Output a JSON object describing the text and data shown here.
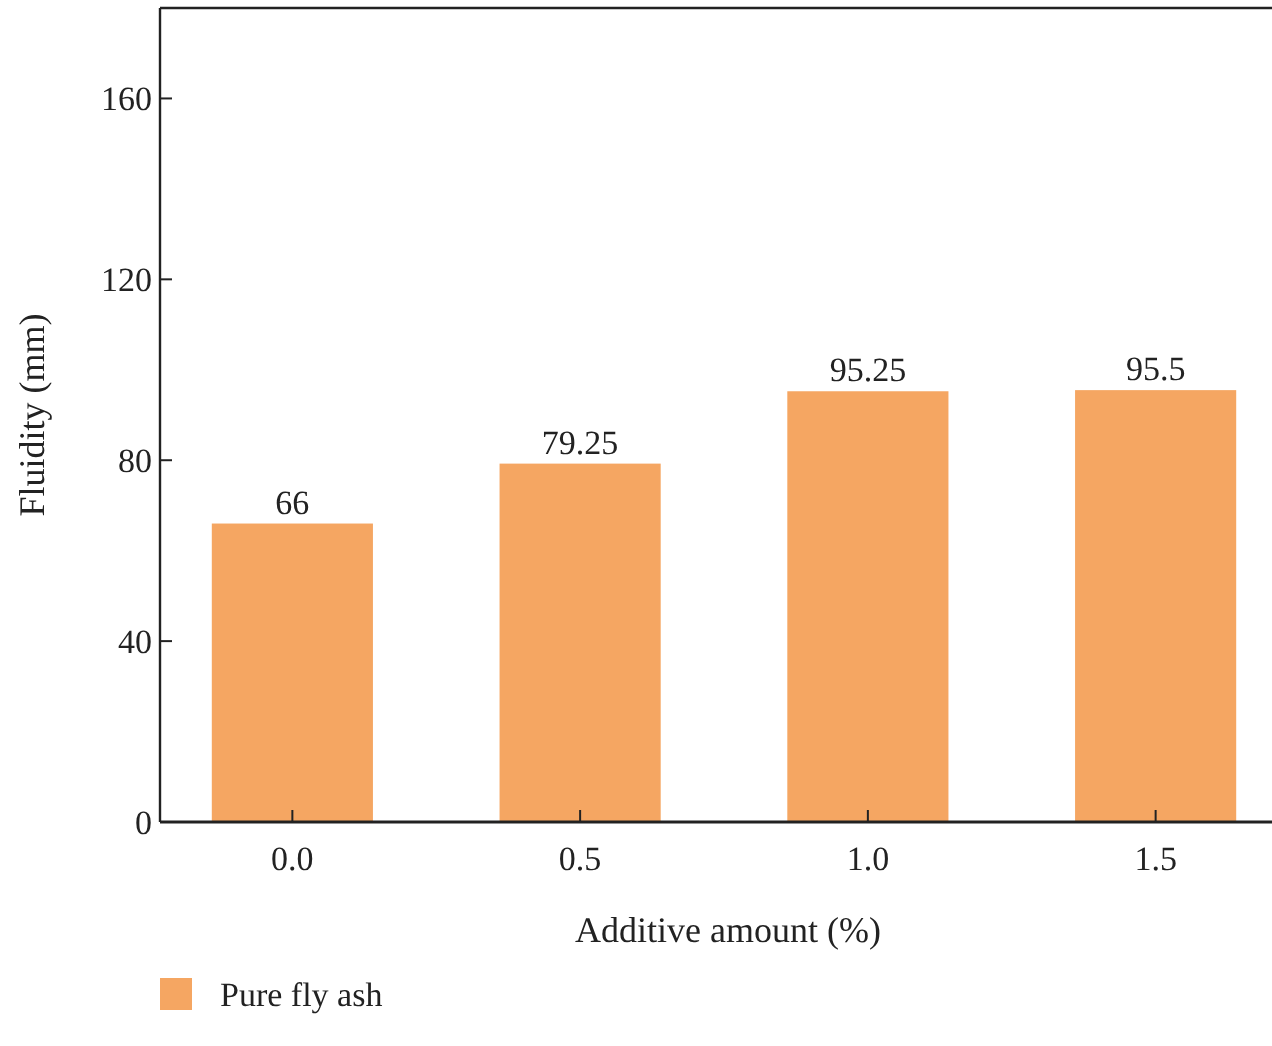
{
  "chart_data": {
    "type": "bar",
    "xlabel": "Additive amount (%)",
    "ylabel": "Fluidity (mm)",
    "categories": [
      "0.0",
      "0.5",
      "1.0",
      "1.5"
    ],
    "series": [
      {
        "name": "Pure fly ash",
        "color": "#f5a662",
        "values": [
          66,
          79.25,
          95.25,
          95.5
        ]
      }
    ],
    "ylim": [
      0,
      180
    ],
    "yticks": [
      0,
      40,
      80,
      120,
      160
    ],
    "data_labels": true,
    "legend": "bottom left",
    "grid": false
  }
}
